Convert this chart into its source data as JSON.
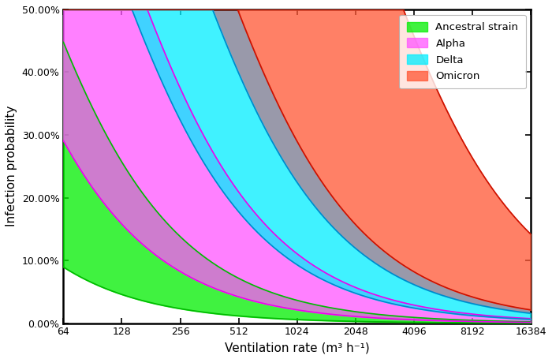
{
  "xlabel": "Ventilation rate (m³ h⁻¹)",
  "ylabel": "Infection probability",
  "x_ticks": [
    64,
    128,
    256,
    512,
    1024,
    2048,
    4096,
    8192,
    16384
  ],
  "ylim": [
    0.0,
    0.5
  ],
  "strains": [
    {
      "name": "Ancestral strain",
      "color_fill": "#00ee00",
      "color_line": "#00bb00",
      "C_low": 6.0,
      "C_high": 38.0
    },
    {
      "name": "Alpha",
      "color_fill": "#ff55ff",
      "color_line": "#ee00ee",
      "C_low": 22.0,
      "C_high": 120.0
    },
    {
      "name": "Delta",
      "color_fill": "#00eeff",
      "color_line": "#0088cc",
      "C_low": 100.0,
      "C_high": 260.0
    },
    {
      "name": "Omicron",
      "color_fill": "#ff5533",
      "color_line": "#cc1100",
      "C_low": 350.0,
      "C_high": 2500.0
    }
  ],
  "gray_band": {
    "C_low": 260.0,
    "C_high": 350.0,
    "color": "#9999aa"
  },
  "background_color": "#ffffff"
}
